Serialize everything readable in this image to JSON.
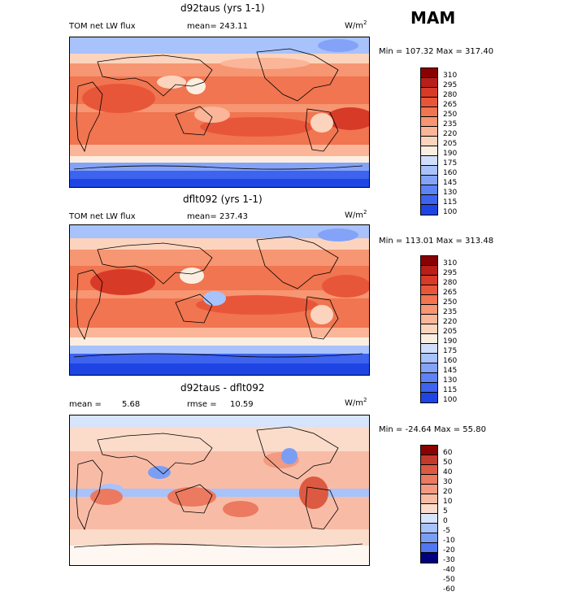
{
  "season": "MAM",
  "units_base": "W/m",
  "units_exp": "2",
  "colors": {
    "abs_scale": [
      "#00007f",
      "#0022cc",
      "#1e45e4",
      "#3d63ef",
      "#5f82f5",
      "#84a3f8",
      "#a8c2fb",
      "#d0defc",
      "#fbeee0",
      "#fcd4bd",
      "#fbb598",
      "#f79672",
      "#f07550",
      "#e8563a",
      "#d83a28",
      "#b81f18",
      "#8b0000"
    ],
    "diff_scale": [
      "#00007f",
      "#0022cc",
      "#2a4ee6",
      "#5278f0",
      "#7b9ef5",
      "#a8c2fb",
      "#d6e4fc",
      "#fff8f2",
      "#fbdcca",
      "#f8bca6",
      "#f39a82",
      "#eb7a60",
      "#dc5a42",
      "#c43a2a",
      "#8b0000"
    ]
  },
  "panels": [
    {
      "title": "d92taus (yrs 1-1)",
      "variable": "TOM net LW flux",
      "stat_label": "mean=",
      "stat_value": "243.11",
      "minmax": "Min = 107.32 Max = 317.40",
      "levels": [
        "310",
        "295",
        "280",
        "265",
        "250",
        "235",
        "220",
        "205",
        "190",
        "175",
        "160",
        "145",
        "130",
        "115",
        "100"
      ]
    },
    {
      "title": "dflt092 (yrs 1-1)",
      "variable": "TOM net LW flux",
      "stat_label": "mean=",
      "stat_value": "237.43",
      "minmax": "Min = 113.01 Max = 313.48",
      "levels": [
        "310",
        "295",
        "280",
        "265",
        "250",
        "235",
        "220",
        "205",
        "190",
        "175",
        "160",
        "145",
        "130",
        "115",
        "100"
      ]
    },
    {
      "title": "d92taus - dflt092",
      "mean_label": "mean =",
      "mean_value": "5.68",
      "rmse_label": "rmse =",
      "rmse_value": "10.59",
      "minmax": "Min = -24.64 Max =  55.80",
      "levels": [
        "60",
        "50",
        "40",
        "30",
        "20",
        "10",
        "5",
        "0",
        "-5",
        "-10",
        "-20",
        "-30",
        "-40",
        "-50",
        "-60"
      ]
    }
  ]
}
